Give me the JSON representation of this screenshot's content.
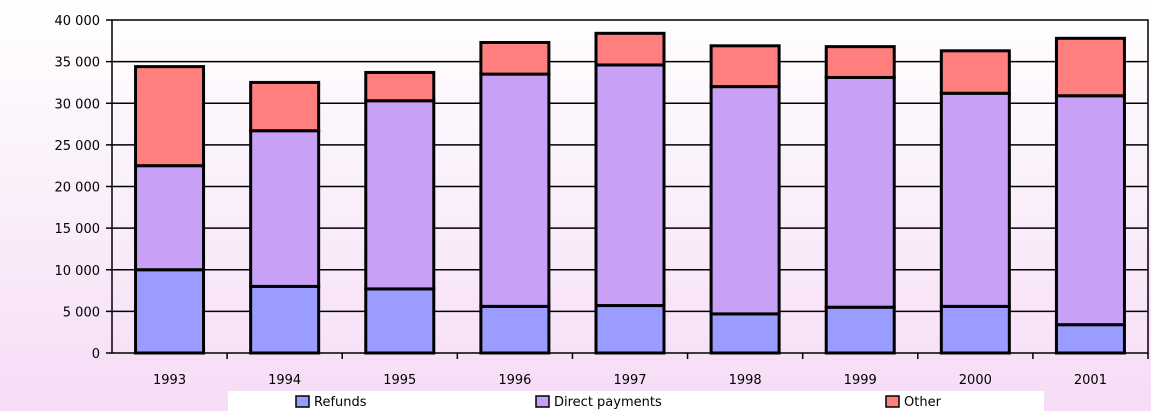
{
  "colors": {
    "refunds": "#9a9cff",
    "direct_payments": "#c8a0f6",
    "other": "#ff7f7f",
    "outline": "#000000",
    "gridline": "#000000",
    "legend_bg": "#ffffff"
  },
  "chart_data": {
    "type": "bar",
    "stacked": true,
    "title": "",
    "xlabel": "",
    "ylabel": "",
    "categories": [
      "1993",
      "1994",
      "1995",
      "1996",
      "1997",
      "1998",
      "1999",
      "2000",
      "2001"
    ],
    "series": [
      {
        "name": "Refunds",
        "color_key": "refunds",
        "values": [
          10000,
          8000,
          7700,
          5600,
          5700,
          4700,
          5500,
          5600,
          3400
        ]
      },
      {
        "name": "Direct payments",
        "color_key": "direct_payments",
        "values": [
          12500,
          18700,
          22600,
          27900,
          28900,
          27300,
          27600,
          25600,
          27500
        ]
      },
      {
        "name": "Other",
        "color_key": "other",
        "values": [
          11900,
          5800,
          3400,
          3800,
          3800,
          4900,
          3700,
          5100,
          6900
        ]
      }
    ],
    "ylim": [
      0,
      40000
    ],
    "yticks": [
      "0",
      "5 000",
      "10 000",
      "15 000",
      "20 000",
      "25 000",
      "30 000",
      "35 000",
      "40 000"
    ],
    "grid": true,
    "legend_position": "bottom"
  }
}
